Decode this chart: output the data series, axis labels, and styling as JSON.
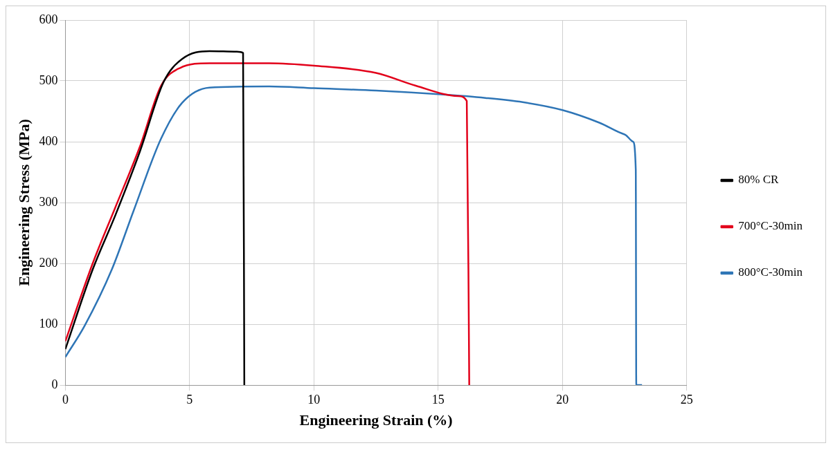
{
  "chart_data": {
    "type": "line",
    "xlabel": "Engineering Strain (%)",
    "ylabel": "Engineering Stress (MPa)",
    "xlim": [
      0,
      25
    ],
    "xticks": [
      0,
      5,
      10,
      15,
      20,
      25
    ],
    "ylim": [
      0,
      600
    ],
    "yticks": [
      0,
      100,
      200,
      300,
      400,
      500,
      600
    ],
    "grid": true,
    "legend": "right",
    "marker": "none",
    "line_style": "solid",
    "series": [
      {
        "name": "80% CR",
        "color": "#000000",
        "x": [
          0,
          1.1,
          2.0,
          3.0,
          3.95,
          4.7,
          5.8,
          6.9,
          7.15,
          7.2
        ],
        "values": [
          59,
          190,
          278,
          384,
          498,
          536,
          549,
          548,
          546,
          0
        ]
      },
      {
        "name": "700°C-30min",
        "color": "#e2001a",
        "x": [
          0,
          1.1,
          2.0,
          3.0,
          3.85,
          4.6,
          5.8,
          8.2,
          10,
          12.5,
          14.1,
          15.8,
          16.15,
          16.25
        ],
        "values": [
          72,
          200,
          291,
          392,
          492,
          521,
          529,
          529,
          525,
          513,
          492,
          475,
          467,
          0
        ]
      },
      {
        "name": "800°C-30min",
        "color": "#2e75b6",
        "x": [
          0,
          0.77,
          1.87,
          2.75,
          3.85,
          4.7,
          5.8,
          8.2,
          10,
          12.5,
          15,
          16.9,
          18.4,
          20,
          21.5,
          22.5,
          22.84,
          22.95,
          22.97,
          23.2
        ],
        "values": [
          46,
          97,
          190,
          287,
          405,
          464,
          489,
          491,
          488,
          484,
          478,
          472,
          465,
          452,
          431,
          412,
          400,
          354,
          0,
          0
        ]
      }
    ]
  }
}
